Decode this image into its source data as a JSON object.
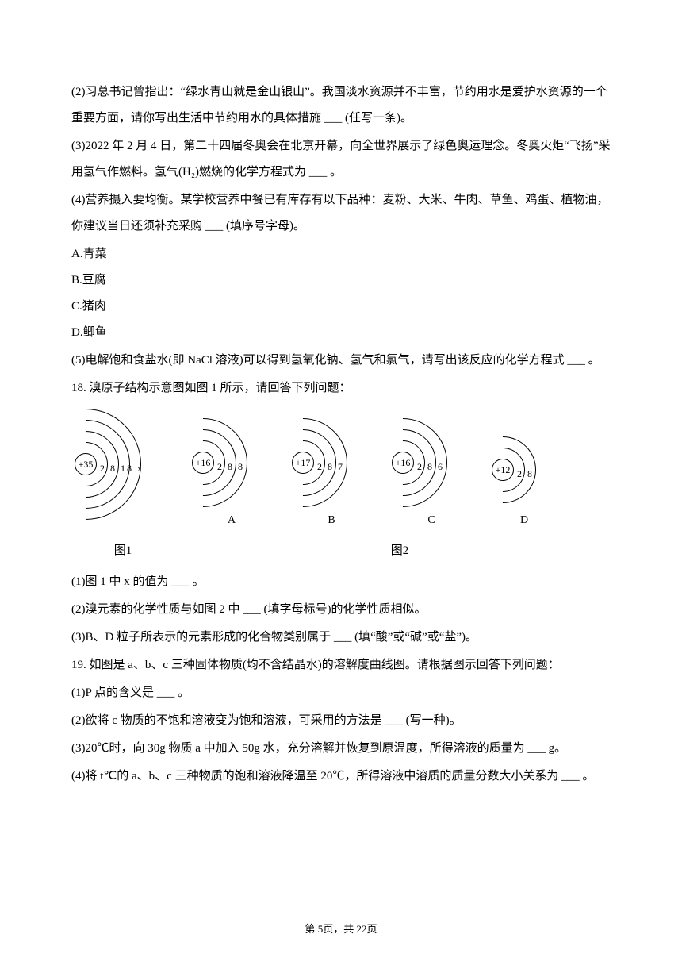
{
  "q17": {
    "p2": "(2)习总书记曾指出：“绿水青山就是金山银山”。我国淡水资源并不丰富，节约用水是爱护水资源的一个重要方面，请你写出生活中节约用水的具体措施 ___ (任写一条)。",
    "p3": "(3)2022 年 2 月 4 日，第二十四届冬奥会在北京开幕，向全世界展示了绿色奥运理念。冬奥火炬“飞扬”采用氢气作燃料。氢气(H₂)燃烧的化学方程式为 ___ 。",
    "p4": "(4)营养摄入要均衡。某学校营养中餐已有库存有以下品种：麦粉、大米、牛肉、草鱼、鸡蛋、植物油，你建议当日还须补充采购 ___ (填序号字母)。",
    "optA": "A.青菜",
    "optB": "B.豆腐",
    "optC": "C.猪肉",
    "optD": "D.鲫鱼",
    "p5": "(5)电解饱和食盐水(即 NaCl 溶液)可以得到氢氧化钠、氢气和氯气，请写出该反应的化学方程式 ___ 。"
  },
  "q18": {
    "stem": "18.  溴原子结构示意图如图 1 所示，请回答下列问题：",
    "atoms": [
      {
        "nucleus": "+35",
        "shells": "2 8 18 x",
        "label": "图1",
        "nshell": 4
      },
      {
        "nucleus": "+16",
        "shells": "2 8 8",
        "label": "A",
        "nshell": 3
      },
      {
        "nucleus": "+17",
        "shells": "2 8 7",
        "label": "B",
        "nshell": 3
      },
      {
        "nucleus": "+16",
        "shells": "2 8 6",
        "label": "C",
        "nshell": 3
      },
      {
        "nucleus": "+12",
        "shells": "2 8",
        "label": "D",
        "nshell": 2
      }
    ],
    "fig2": "图2",
    "p1": "(1)图 1 中 x 的值为 ___ 。",
    "p2": "(2)溴元素的化学性质与如图 2 中 ___ (填字母标号)的化学性质相似。",
    "p3": "(3)B、D 粒子所表示的元素形成的化合物类别属于 ___ (填“酸”或“碱”或“盐”)。"
  },
  "q19": {
    "stem": "19.  如图是 a、b、c 三种固体物质(均不含结晶水)的溶解度曲线图。请根据图示回答下列问题：",
    "p1": "(1)P 点的含义是 ___ 。",
    "p2": "(2)欲将 c 物质的不饱和溶液变为饱和溶液，可采用的方法是 ___ (写一种)。",
    "p3": "(3)20℃时，向 30g 物质 a 中加入 50g 水，充分溶解并恢复到原温度，所得溶液的质量为 ___ g。",
    "p4": "(4)将 t℃的 a、b、c 三种物质的饱和溶液降温至 20℃，所得溶液中溶质的质量分数大小关系为 ___ 。"
  },
  "footer": "第 5页，共 22页"
}
